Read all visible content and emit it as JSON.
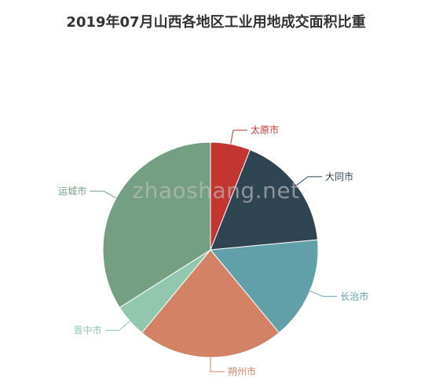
{
  "chart_data": {
    "type": "pie",
    "title": "2019年07月山西各地区工业用地成交面积比重",
    "slices": [
      {
        "label": "太原市",
        "value": 6.0,
        "color": "#c23531"
      },
      {
        "label": "大同市",
        "value": 17.5,
        "color": "#2f4554"
      },
      {
        "label": "长治市",
        "value": 15.5,
        "color": "#61a0a8"
      },
      {
        "label": "朔州市",
        "value": 22.0,
        "color": "#d48265"
      },
      {
        "label": "晋中市",
        "value": 5.0,
        "color": "#91c7ae"
      },
      {
        "label": "运城市",
        "value": 34.0,
        "color": "#749f83"
      }
    ],
    "legend": "none"
  },
  "watermark": "zhaoshang.net"
}
